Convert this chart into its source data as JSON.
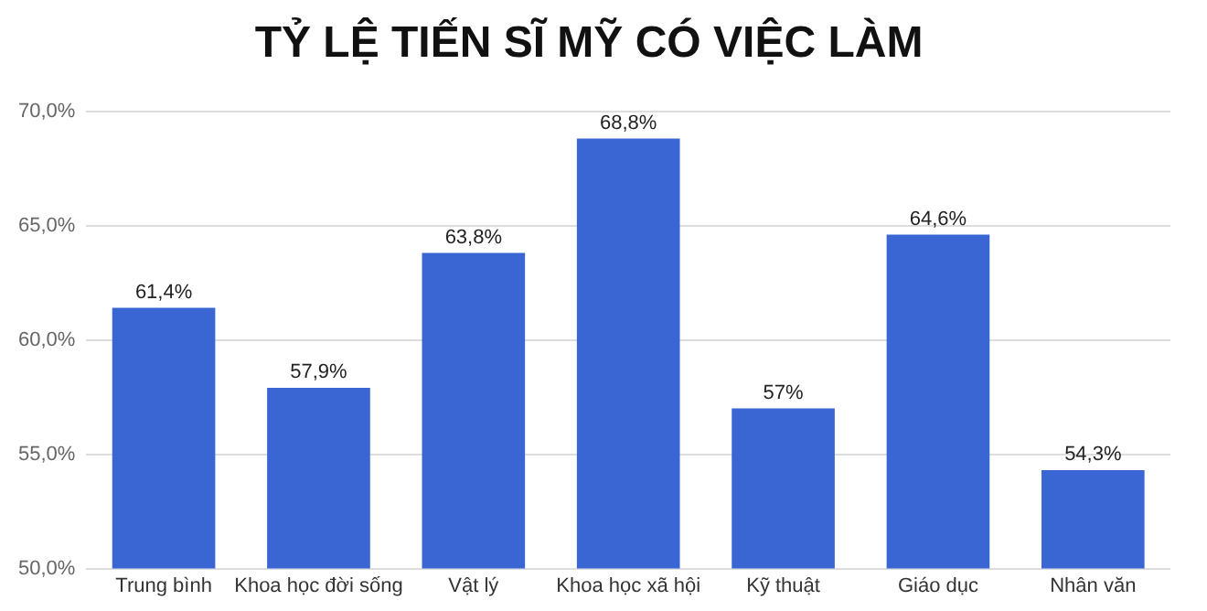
{
  "chart_data": {
    "type": "bar",
    "title": "TỶ LỆ TIẾN SĨ MỸ CÓ VIỆC LÀM",
    "categories": [
      "Trung bình",
      "Khoa học đời sống",
      "Vật lý",
      "Khoa học xã hội",
      "Kỹ thuật",
      "Giáo dục",
      "Nhân văn"
    ],
    "values": [
      61.4,
      57.9,
      63.8,
      68.8,
      57,
      64.6,
      54.3
    ],
    "value_labels": [
      "61,4%",
      "57,9%",
      "63,8%",
      "68,8%",
      "57%",
      "64,6%",
      "54,3%"
    ],
    "color": "#3a66d4",
    "ylim": [
      50,
      70
    ],
    "yticks": [
      {
        "value": 50,
        "label": "50,0%"
      },
      {
        "value": 55,
        "label": "55,0%"
      },
      {
        "value": 60,
        "label": "60,0%"
      },
      {
        "value": 65,
        "label": "65,0%"
      },
      {
        "value": 70,
        "label": "70,0%"
      }
    ],
    "grid": "y",
    "legend": false
  }
}
